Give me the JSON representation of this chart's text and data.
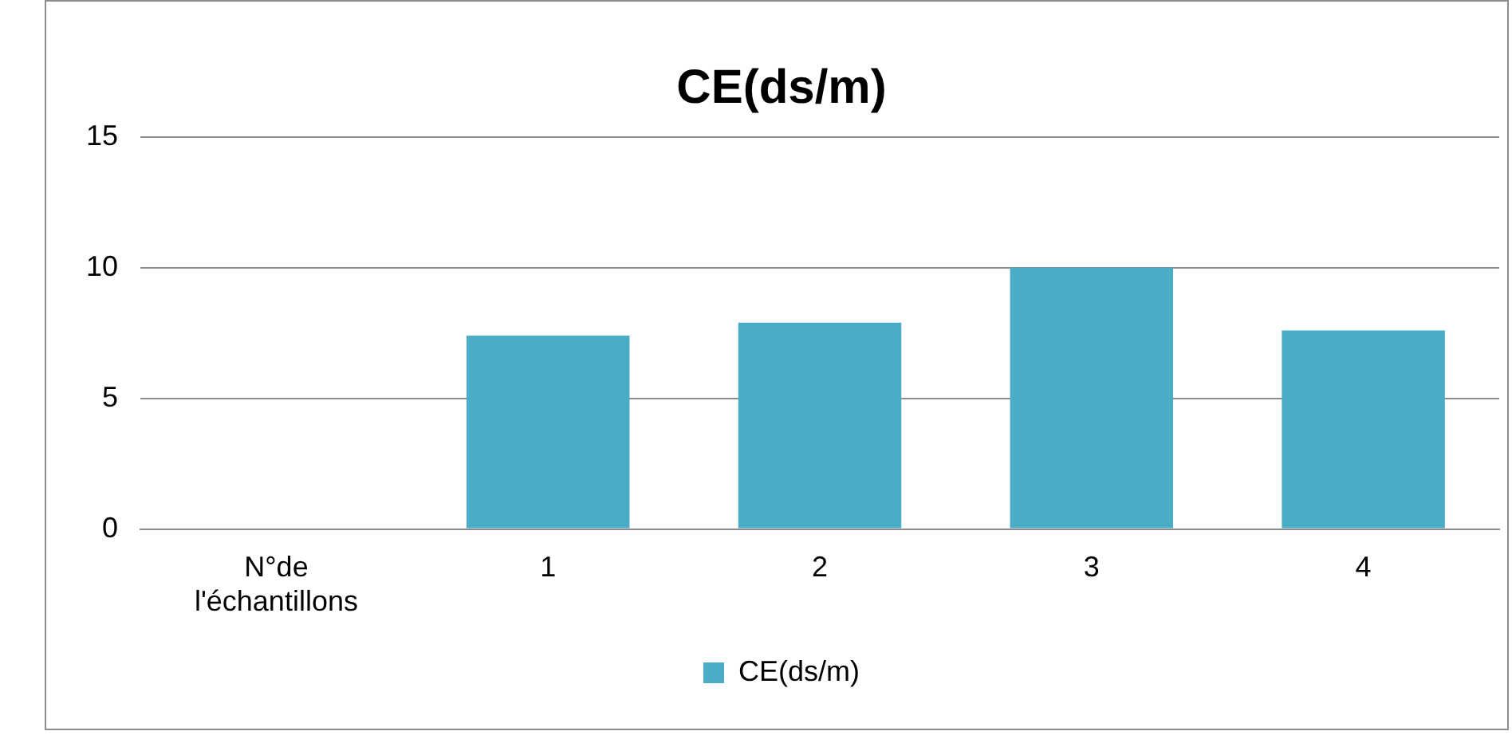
{
  "chart_data": {
    "type": "bar",
    "title": "CE(ds/m)",
    "categories": [
      "N°de l'échantillons",
      "1",
      "2",
      "3",
      "4"
    ],
    "series": [
      {
        "name": "CE(ds/m)",
        "color": "#4bacc6",
        "values": [
          null,
          7.4,
          7.9,
          10,
          7.6
        ]
      }
    ],
    "ylim": [
      0,
      15
    ],
    "yticks": [
      0,
      5,
      10,
      15
    ],
    "grid": "y",
    "legend": "bottom"
  }
}
